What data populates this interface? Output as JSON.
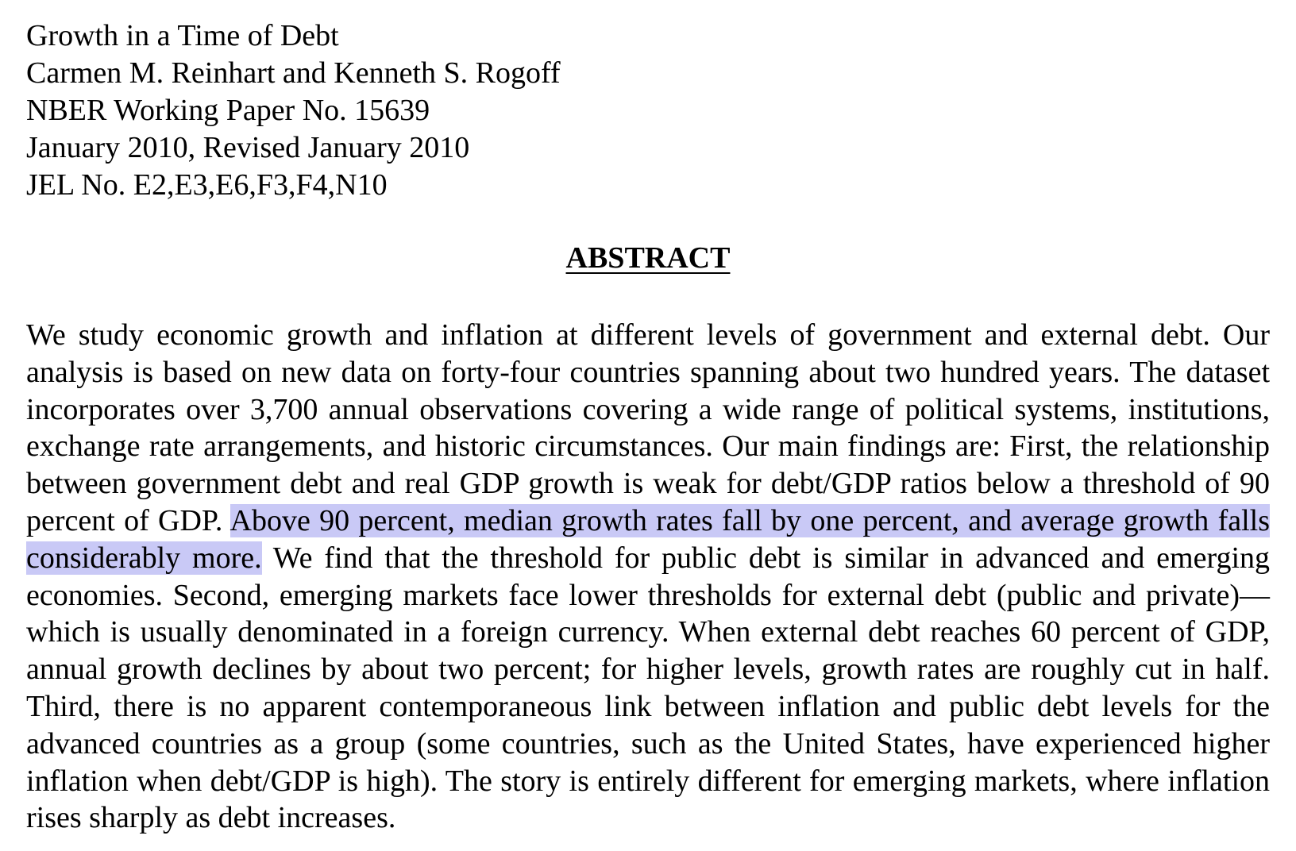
{
  "paper": {
    "title": "Growth in a Time of Debt",
    "authors": "Carmen M. Reinhart and Kenneth S. Rogoff",
    "series": "NBER Working Paper No. 15639",
    "date": "January 2010, Revised January 2010",
    "jel": "JEL No. E2,E3,E6,F3,F4,N10"
  },
  "abstract": {
    "heading": "ABSTRACT",
    "text_before": "We study economic growth and inflation at different levels of government and external debt.  Our analysis is based on new data on forty-four countries spanning about two hundred years.  The dataset incorporates over 3,700 annual observations covering a wide range of political systems, institutions, exchange rate arrangements, and historic circumstances.  Our main findings are:  First, the relationship between government debt and real GDP growth is weak for debt/GDP ratios below a threshold of 90 percent of GDP.  ",
    "highlighted_text": "Above 90 percent, median growth rates fall by one percent, and average growth falls considerably more.",
    "text_after": "  We find that the threshold for public debt is similar in advanced and emerging economies.  Second, emerging markets face lower thresholds for external debt (public and private)—which is usually denominated in a foreign currency.  When external debt reaches 60 percent of GDP, annual growth declines by about two percent; for higher levels, growth rates are roughly cut in half.  Third, there is no apparent contemporaneous link between inflation and public debt levels for the advanced countries as a group (some countries, such as the United States, have experienced higher inflation when debt/GDP is high).  The story is entirely different for emerging markets, where inflation  rises sharply as debt increases.",
    "highlight_color": "#c9c9f6"
  }
}
